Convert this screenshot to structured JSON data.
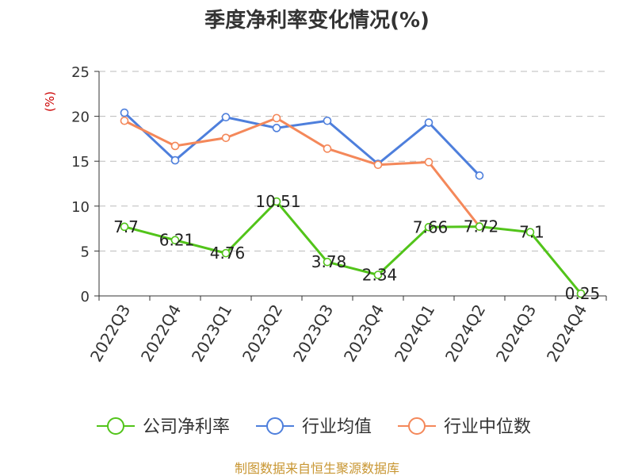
{
  "chart_data": {
    "type": "line",
    "title": "季度净利率变化情况(%)",
    "ylabel": "(%)",
    "xlabel": "",
    "ylim": [
      0,
      25
    ],
    "yticks": [
      0,
      5,
      10,
      15,
      20,
      25
    ],
    "categories": [
      "2022Q3",
      "2022Q4",
      "2023Q1",
      "2023Q2",
      "2023Q3",
      "2023Q4",
      "2024Q1",
      "2024Q2",
      "2024Q3",
      "2024Q4"
    ],
    "series": [
      {
        "name": "公司净利率",
        "color": "#52c41a",
        "values": [
          7.7,
          6.21,
          4.76,
          10.51,
          3.78,
          2.34,
          7.66,
          7.72,
          7.1,
          0.25
        ],
        "labels": [
          "7.7",
          "6.21",
          "4.76",
          "10.51",
          "3.78",
          "2.34",
          "7.66",
          "7.72",
          "7.1",
          "0.25"
        ]
      },
      {
        "name": "行业均值",
        "color": "#4e7fdc",
        "values": [
          20.4,
          15.1,
          19.9,
          18.7,
          19.5,
          14.7,
          19.3,
          13.4,
          null,
          null
        ]
      },
      {
        "name": "行业中位数",
        "color": "#f4885a",
        "values": [
          19.5,
          16.7,
          17.6,
          19.8,
          16.4,
          14.6,
          14.9,
          7.72,
          null,
          null
        ]
      }
    ],
    "grid": true,
    "legend": "bottom"
  },
  "source_text": "制图数据来自恒生聚源数据库",
  "colors": {
    "axis": "#333333",
    "grid": "#bbbbbb",
    "unit": "#cc0000",
    "source": "#c89632"
  }
}
